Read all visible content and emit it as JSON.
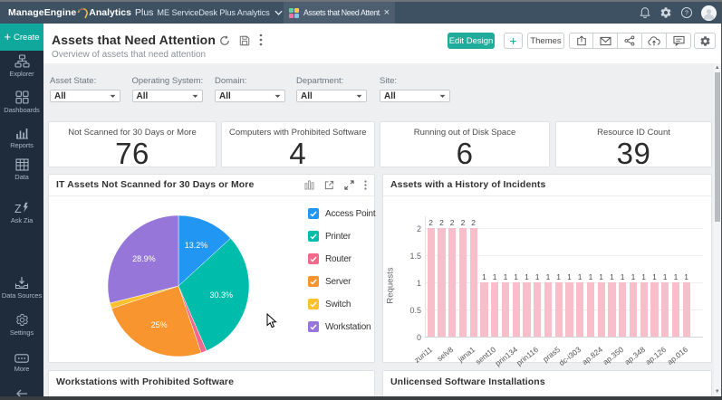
{
  "topbar": {
    "brand": "ManageEngine",
    "product": "Analytics",
    "product_suffix": "Plus",
    "workspace_selector": "ME ServiceDesk Plus Analytics",
    "active_tab": "Assets that Need Attent...",
    "tab_close": "×",
    "icons": [
      "notifications-bell-icon",
      "settings-gear-icon",
      "help-question-icon",
      "user-avatar"
    ]
  },
  "sidebar": {
    "create_plus": "+",
    "create_label": "Create",
    "items": [
      {
        "label": "Explorer",
        "icon": "explorer-icon"
      },
      {
        "label": "Dashboards",
        "icon": "dashboards-icon"
      },
      {
        "label": "Reports",
        "icon": "reports-icon"
      },
      {
        "label": "Data",
        "icon": "data-icon"
      },
      {
        "label": "Ask Zia",
        "icon": "ask-zia-icon"
      }
    ],
    "bottom_items": [
      {
        "label": "Data Sources",
        "icon": "data-sources-icon"
      },
      {
        "label": "Settings",
        "icon": "settings-icon"
      },
      {
        "label": "More",
        "icon": "more-icon"
      }
    ]
  },
  "header": {
    "title": "Assets that Need Attention",
    "subtitle": "Overview of assets that need attention",
    "title_icons": [
      "refresh-icon",
      "save-icon",
      "kebab-menu-icon"
    ],
    "edit_design": "Edit Design",
    "add": "+",
    "themes": "Themes",
    "action_icons": [
      "export-icon",
      "email-icon",
      "share-icon",
      "cloud-upload-icon",
      "comment-icon",
      "gear-icon"
    ]
  },
  "filters": [
    {
      "label": "Asset State:",
      "value": "All"
    },
    {
      "label": "Operating System:",
      "value": "All"
    },
    {
      "label": "Domain:",
      "value": "All"
    },
    {
      "label": "Department:",
      "value": "All"
    },
    {
      "label": "Site:",
      "value": "All"
    }
  ],
  "kpis": [
    {
      "label": "Not Scanned for 30 Days or More",
      "value": "76"
    },
    {
      "label": "Computers with Prohibited Software",
      "value": "4"
    },
    {
      "label": "Running out of Disk Space",
      "value": "6"
    },
    {
      "label": "Resource ID Count",
      "value": "39"
    }
  ],
  "panels": {
    "bottom_left_title": "Workstations with Prohibited Software",
    "bottom_right_title": "Unlicensed Software Installations"
  },
  "chart_data": [
    {
      "type": "pie",
      "title": "IT Assets Not Scanned for 30 Days or More",
      "labels": [
        "Access Point",
        "Printer",
        "Router",
        "Server",
        "Switch",
        "Workstation"
      ],
      "values": [
        13.2,
        30.3,
        1.3,
        25.0,
        1.3,
        28.9
      ],
      "slice_labels": [
        "13.2%",
        "30.3%",
        "",
        "25%",
        "",
        "28.9%"
      ],
      "colors": [
        "#2196f3",
        "#00bdab",
        "#f4688c",
        "#f9952e",
        "#fdc130",
        "#9677d9"
      ],
      "legend_position": "right",
      "start_angle_deg": 0,
      "direction": "clockwise"
    },
    {
      "type": "bar",
      "title": "Assets with a History of Incidents",
      "ylabel": "Requests",
      "ylim": [
        0,
        2
      ],
      "yticks": [
        0,
        0.5,
        1,
        1.5,
        2
      ],
      "categories": [
        "zuri11",
        "",
        "selv8",
        "",
        "jana1",
        "",
        "sent10",
        "",
        "prin134",
        "",
        "prin116",
        "",
        "pras5",
        "",
        "dc-i303",
        "",
        "ap.824",
        "",
        "ap.350",
        "",
        "ap.348",
        "",
        "ap.126",
        "",
        "ap.016"
      ],
      "values": [
        2,
        2,
        2,
        2,
        2,
        1,
        1,
        1,
        1,
        1,
        1,
        1,
        1,
        1,
        1,
        1,
        1,
        1,
        1,
        1,
        1,
        1,
        1,
        1,
        1
      ],
      "bar_color": "#f8bec9",
      "grid": true,
      "legend_position": "none"
    }
  ]
}
